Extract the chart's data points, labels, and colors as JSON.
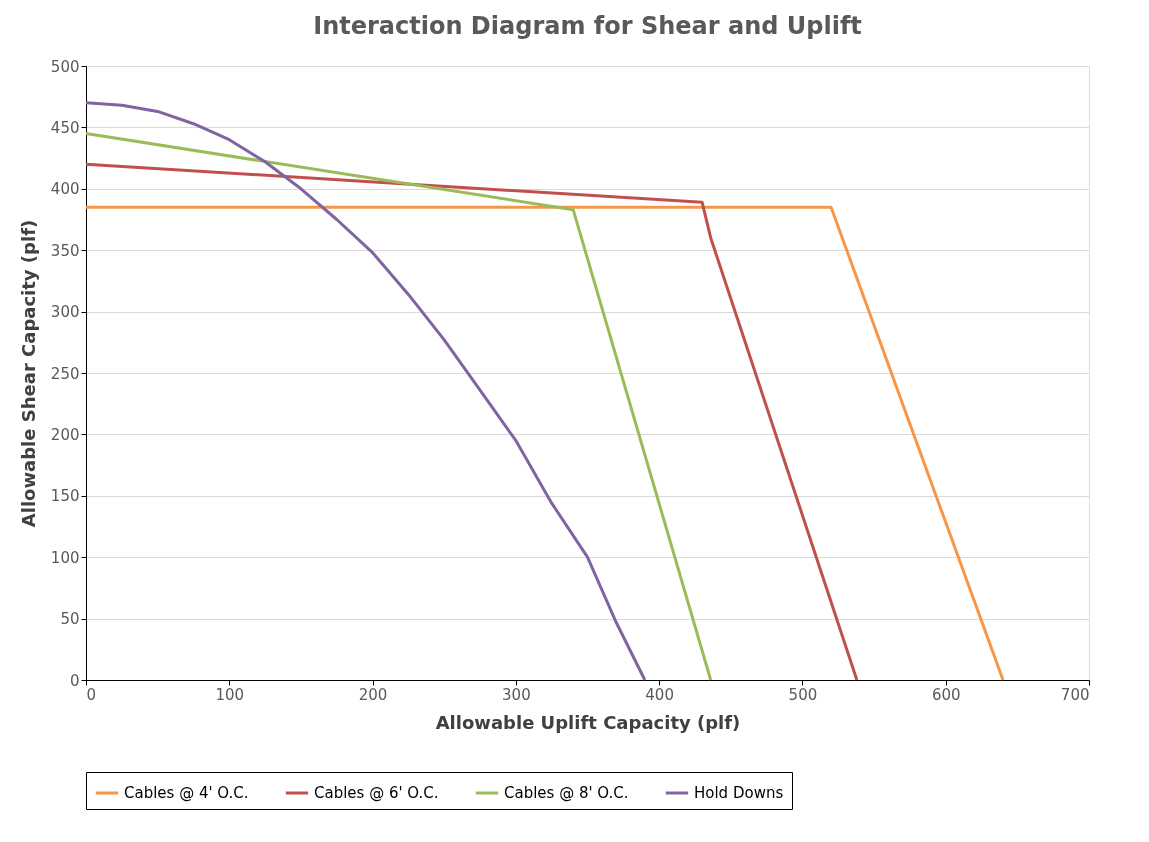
{
  "chart_data": {
    "type": "line",
    "title": "Interaction Diagram for Shear and Uplift",
    "xlabel": "Allowable Uplift Capacity (plf)",
    "ylabel": "Allowable Shear Capacity (plf)",
    "xlim": [
      0,
      700
    ],
    "xticks": [
      0,
      100,
      200,
      300,
      400,
      500,
      600,
      700
    ],
    "ylim": [
      0,
      500
    ],
    "yticks": [
      0,
      50,
      100,
      150,
      200,
      250,
      300,
      350,
      400,
      450,
      500
    ],
    "grid": "y",
    "legend": "bottom",
    "marker": "none",
    "line_style": "solid",
    "series": [
      {
        "name": "Cables @ 4' O.C.",
        "color": "#f79646",
        "x": [
          0,
          520,
          640
        ],
        "values": [
          385,
          385,
          0
        ]
      },
      {
        "name": "Cables @ 6' O.C.",
        "color": "#c0504d",
        "x": [
          0,
          430,
          436,
          538
        ],
        "values": [
          420,
          389,
          360,
          0
        ]
      },
      {
        "name": "Cables @ 8' O.C.",
        "color": "#9bbb59",
        "x": [
          0,
          340,
          436
        ],
        "values": [
          445,
          383,
          0
        ]
      },
      {
        "name": "Hold Downs",
        "color": "#8064a2",
        "x": [
          0,
          25,
          50,
          75,
          100,
          125,
          150,
          175,
          200,
          225,
          250,
          275,
          300,
          325,
          350,
          370,
          390
        ],
        "values": [
          470,
          468,
          463,
          453,
          440,
          422,
          400,
          375,
          348,
          314,
          277,
          236,
          195,
          144,
          100,
          47,
          0
        ]
      }
    ]
  }
}
